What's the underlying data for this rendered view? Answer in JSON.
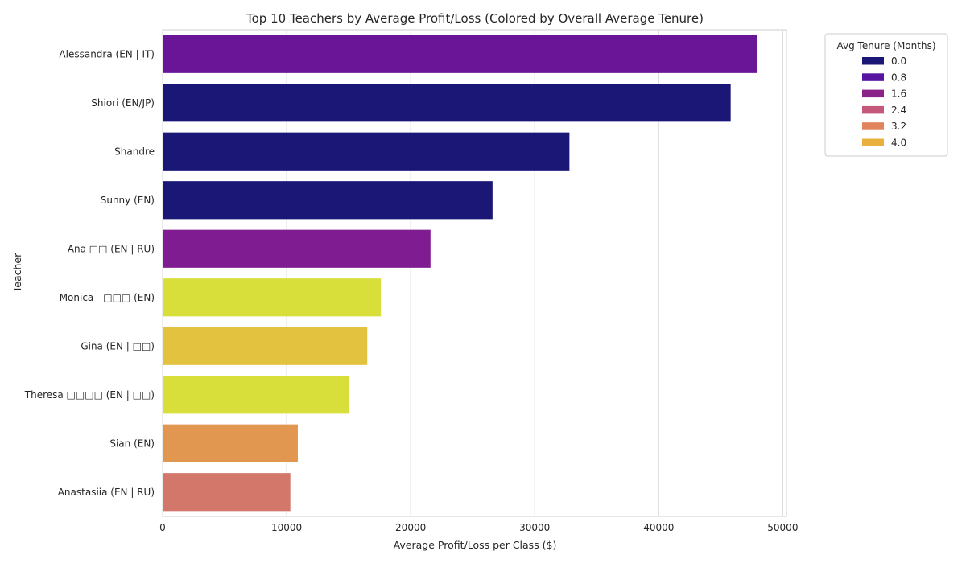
{
  "chart_data": {
    "type": "bar",
    "orientation": "horizontal",
    "title": "Top 10 Teachers by Average Profit/Loss (Colored by Overall Average Tenure)",
    "xlabel": "Average Profit/Loss per Class ($)",
    "ylabel": "Teacher",
    "xlim": [
      0,
      50300
    ],
    "xticks": [
      0,
      10000,
      20000,
      30000,
      40000,
      50000
    ],
    "xtick_labels": [
      "0",
      "10000",
      "20000",
      "30000",
      "40000",
      "50000"
    ],
    "grid": "vertical",
    "legend_placement": "outside-top-right",
    "categories": [
      "Alessandra (EN | IT)",
      "Shiori (EN/JP)",
      "Shandre",
      "Sunny (EN)",
      "Ana □□ (EN | RU)",
      "Monica - □□□ (EN)",
      "Gina (EN | □□)",
      "Theresa □□□□ (EN | □□)",
      "Sian (EN)",
      "Anastasiia (EN | RU)"
    ],
    "values": [
      47900,
      45800,
      32800,
      26600,
      21600,
      17600,
      16500,
      15000,
      10900,
      10300
    ],
    "bar_colors": [
      "#6a1497",
      "#1a1776",
      "#1a1776",
      "#1a1776",
      "#801c91",
      "#d8df3a",
      "#e2c23e",
      "#d8df3a",
      "#e1974f",
      "#d4776b"
    ],
    "legend": {
      "title": "Avg Tenure (Months)",
      "entries": [
        {
          "label": "0.0",
          "color": "#1a1776"
        },
        {
          "label": "0.8",
          "color": "#5714a0"
        },
        {
          "label": "1.6",
          "color": "#8b2289"
        },
        {
          "label": "2.4",
          "color": "#c3587b"
        },
        {
          "label": "3.2",
          "color": "#e0845c"
        },
        {
          "label": "4.0",
          "color": "#e9b03d"
        }
      ]
    }
  }
}
